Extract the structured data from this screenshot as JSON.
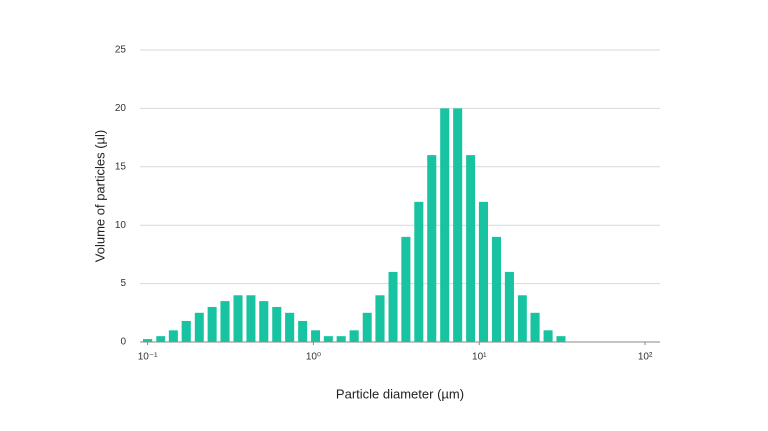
{
  "chart_data": {
    "type": "bar",
    "xlabel": "Particle diameter (µm)",
    "ylabel": "Volume of particles  (µl)",
    "x": [
      0.1,
      0.12,
      0.143,
      0.171,
      0.205,
      0.245,
      0.293,
      0.351,
      0.42,
      0.502,
      0.601,
      0.719,
      0.861,
      1.03,
      1.23,
      1.47,
      1.76,
      2.11,
      2.52,
      3.02,
      3.61,
      4.32,
      5.17,
      6.19,
      7.41,
      8.87,
      10.6,
      12.7,
      15.2,
      18.2,
      21.7,
      26.0,
      31.1
    ],
    "values": [
      0.25,
      0.5,
      1,
      1.8,
      2.5,
      3,
      3.5,
      4,
      4,
      3.5,
      3,
      2.5,
      1.8,
      1,
      0.5,
      0.5,
      1,
      2.5,
      4,
      6,
      9,
      12,
      16,
      20,
      20,
      16,
      12,
      9,
      6,
      4,
      2.5,
      1,
      0.5
    ],
    "color": "#17c3a0",
    "xscale": "log",
    "xlim": [
      0.09,
      123
    ],
    "xticks": [
      {
        "value": 0.1,
        "label": "10⁻¹"
      },
      {
        "value": 1,
        "label": "10⁰"
      },
      {
        "value": 10,
        "label": "10¹"
      },
      {
        "value": 100,
        "label": "10²"
      }
    ],
    "ylim": [
      0,
      25
    ],
    "yticks": [
      0,
      5,
      10,
      15,
      20,
      25
    ],
    "grid": true
  }
}
